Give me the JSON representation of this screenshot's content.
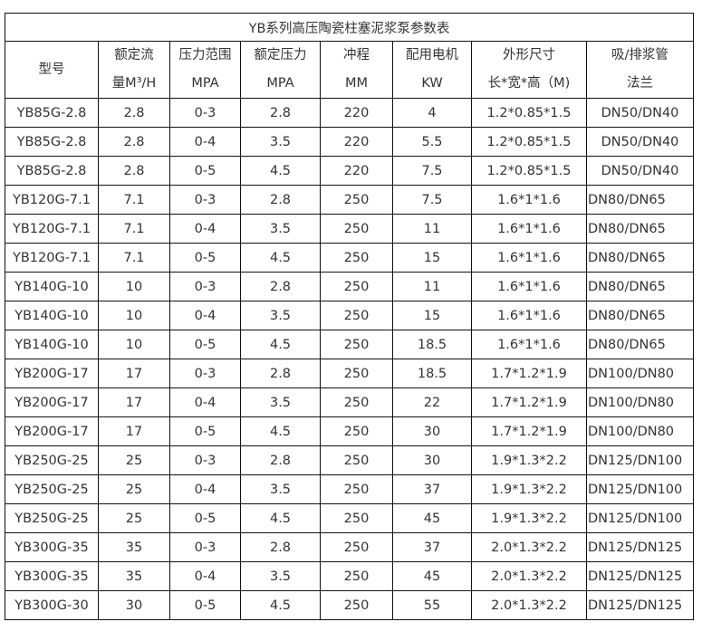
{
  "title": "YB系列高压陶瓷柱塞泥浆泵参数表",
  "headers": [
    [
      "型号"
    ],
    [
      "额定流",
      "量M³/H"
    ],
    [
      "压力范围",
      "MPA"
    ],
    [
      "额定压力",
      "MPA"
    ],
    [
      "冲程",
      "MM"
    ],
    [
      "配用电机",
      "KW"
    ],
    [
      "外形尺寸",
      "长*宽*高（M)"
    ],
    [
      "吸/排浆管",
      "法兰"
    ]
  ],
  "rows": [
    [
      "YB85G-2.8",
      "2.8",
      "0-3",
      "2.8",
      "220",
      "4",
      "1.2*0.85*1.5",
      "DN50/DN40"
    ],
    [
      "YB85G-2.8",
      "2.8",
      "0-4",
      "3.5",
      "220",
      "5.5",
      "1.2*0.85*1.5",
      "DN50/DN40"
    ],
    [
      "YB85G-2.8",
      "2.8",
      "0-5",
      "4.5",
      "220",
      "7.5",
      "1.2*0.85*1.5",
      "DN50/DN40"
    ],
    [
      "YB120G-7.1",
      "7.1",
      "0-3",
      "2.8",
      "250",
      "7.5",
      "1.6*1*1.6",
      "DN80/DN65"
    ],
    [
      "YB120G-7.1",
      "7.1",
      "0-4",
      "3.5",
      "250",
      "11",
      "1.6*1*1.6",
      "DN80/DN65"
    ],
    [
      "YB120G-7.1",
      "7.1",
      "0-5",
      "4.5",
      "250",
      "15",
      "1.6*1*1.6",
      "DN80/DN65"
    ],
    [
      "YB140G-10",
      "10",
      "0-3",
      "2.8",
      "250",
      "11",
      "1.6*1*1.6",
      "DN80/DN65"
    ],
    [
      "YB140G-10",
      "10",
      "0-4",
      "3.5",
      "250",
      "15",
      "1.6*1*1.6",
      "DN80/DN65"
    ],
    [
      "YB140G-10",
      "10",
      "0-5",
      "4.5",
      "250",
      "18.5",
      "1.6*1*1.6",
      "DN80/DN65"
    ],
    [
      "YB200G-17",
      "17",
      "0-3",
      "2.8",
      "250",
      "18.5",
      "1.7*1.2*1.9",
      "DN100/DN80"
    ],
    [
      "YB200G-17",
      "17",
      "0-4",
      "3.5",
      "250",
      "22",
      "1.7*1.2*1.9",
      "DN100/DN80"
    ],
    [
      "YB200G-17",
      "17",
      "0-5",
      "4.5",
      "250",
      "30",
      "1.7*1.2*1.9",
      "DN100/DN80"
    ],
    [
      "YB250G-25",
      "25",
      "0-3",
      "2.8",
      "250",
      "30",
      "1.9*1.3*2.2",
      "DN125/DN100"
    ],
    [
      "YB250G-25",
      "25",
      "0-4",
      "3.5",
      "250",
      "37",
      "1.9*1.3*2.2",
      "DN125/DN100"
    ],
    [
      "YB250G-25",
      "25",
      "0-5",
      "4.5",
      "250",
      "45",
      "1.9*1.3*2.2",
      "DN125/DN100"
    ],
    [
      "YB300G-35",
      "35",
      "0-3",
      "2.8",
      "250",
      "37",
      "2.0*1.3*2.2",
      "DN125/DN125"
    ],
    [
      "YB300G-35",
      "35",
      "0-4",
      "3.5",
      "250",
      "45",
      "2.0*1.3*2.2",
      "DN125/DN125"
    ],
    [
      "YB300G-30",
      "30",
      "0-5",
      "4.5",
      "250",
      "55",
      "2.0*1.3*2.2",
      "DN125/DN125"
    ]
  ]
}
